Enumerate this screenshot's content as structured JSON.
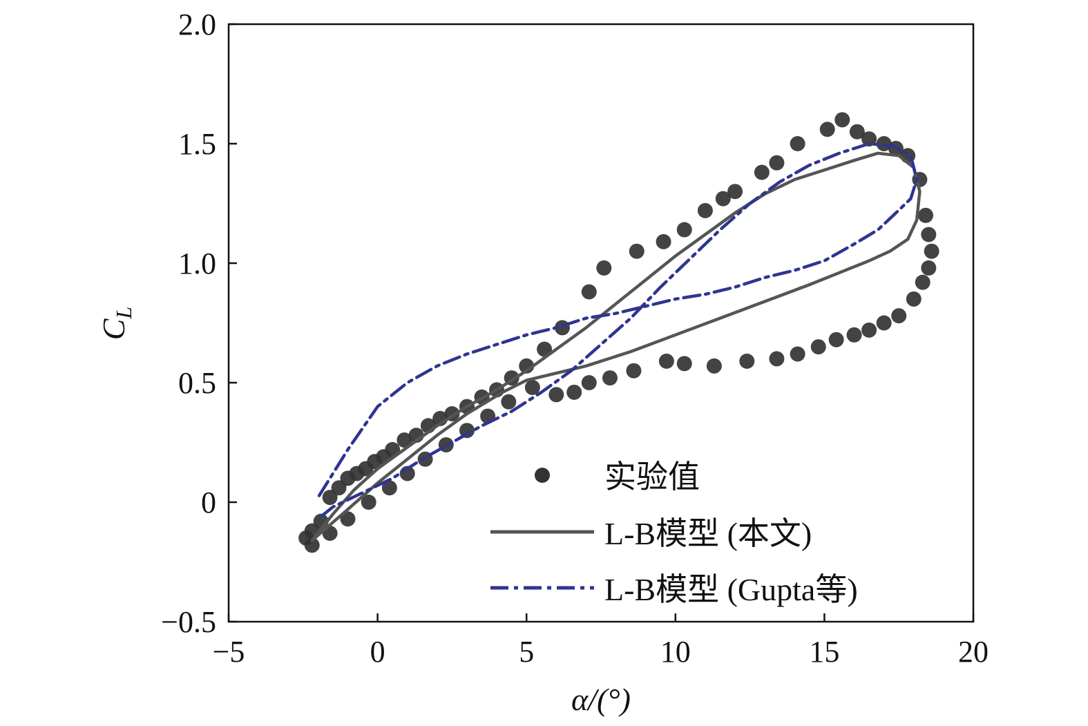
{
  "chart_data": {
    "type": "line",
    "title": "",
    "xlabel": "α/(°)",
    "ylabel": "C_L",
    "ylabel_main": "C",
    "ylabel_sub": "L",
    "xlim": [
      -5,
      20
    ],
    "ylim": [
      -0.5,
      2.0
    ],
    "xticks": [
      -5,
      0,
      5,
      10,
      15,
      20
    ],
    "xtick_labels": [
      "−5",
      "0",
      "5",
      "10",
      "15",
      "20"
    ],
    "yticks": [
      -0.5,
      0,
      0.5,
      1.0,
      1.5,
      2.0
    ],
    "ytick_labels": [
      "−0.5",
      "0",
      "0.5",
      "1.0",
      "1.5",
      "2.0"
    ],
    "grid": false,
    "legend_position": "bottom-right",
    "series": [
      {
        "name": "实验值",
        "kind": "scatter",
        "color": "#333333",
        "x": [
          -2.4,
          -2.2,
          -1.9,
          -1.6,
          -1.3,
          -1.0,
          -0.7,
          -0.4,
          -0.1,
          0.2,
          0.5,
          0.9,
          1.3,
          1.7,
          2.1,
          2.5,
          3.0,
          3.5,
          4.0,
          4.5,
          5.0,
          5.6,
          6.2,
          7.1,
          7.6,
          8.7,
          9.6,
          10.3,
          11.0,
          11.6,
          12.0,
          12.9,
          13.4,
          14.1,
          15.1,
          15.6,
          16.1,
          16.5,
          17.0,
          17.4,
          17.8,
          18.2,
          18.4,
          18.5,
          18.6,
          18.5,
          18.3,
          18.0,
          17.5,
          17.0,
          16.5,
          16.0,
          15.4,
          14.8,
          14.1,
          13.4,
          12.4,
          11.3,
          10.3,
          9.7,
          8.6,
          7.8,
          7.1,
          6.6,
          6.0,
          5.2,
          4.4,
          3.7,
          3.0,
          2.3,
          1.6,
          1.0,
          0.4,
          -0.3,
          -1.0,
          -1.6,
          -2.2
        ],
        "values": [
          -0.15,
          -0.12,
          -0.08,
          0.02,
          0.06,
          0.1,
          0.12,
          0.14,
          0.17,
          0.19,
          0.22,
          0.26,
          0.28,
          0.32,
          0.35,
          0.37,
          0.4,
          0.44,
          0.47,
          0.52,
          0.57,
          0.64,
          0.73,
          0.88,
          0.98,
          1.05,
          1.09,
          1.14,
          1.22,
          1.27,
          1.3,
          1.38,
          1.42,
          1.5,
          1.56,
          1.6,
          1.55,
          1.52,
          1.5,
          1.48,
          1.45,
          1.35,
          1.2,
          1.12,
          1.05,
          0.98,
          0.92,
          0.85,
          0.78,
          0.75,
          0.72,
          0.7,
          0.68,
          0.65,
          0.62,
          0.6,
          0.59,
          0.57,
          0.58,
          0.59,
          0.55,
          0.52,
          0.5,
          0.46,
          0.45,
          0.48,
          0.42,
          0.36,
          0.3,
          0.24,
          0.18,
          0.12,
          0.06,
          0.0,
          -0.07,
          -0.13,
          -0.18
        ]
      },
      {
        "name": "L-B模型 (本文)",
        "kind": "line",
        "color": "#555555",
        "dash": "solid",
        "x": [
          -2.2,
          -1.5,
          -0.8,
          0.0,
          1.0,
          2.0,
          3.0,
          4.0,
          5.0,
          6.0,
          7.0,
          8.0,
          9.0,
          10.0,
          11.0,
          12.0,
          13.0,
          14.0,
          15.0,
          16.0,
          16.8,
          17.5,
          18.0,
          18.2,
          18.1,
          17.8,
          17.2,
          16.5,
          15.5,
          14.5,
          13.0,
          11.5,
          10.0,
          8.5,
          7.0,
          6.0,
          5.0,
          4.2,
          3.0,
          2.0,
          1.0,
          0.0,
          -1.0,
          -2.2
        ],
        "values": [
          -0.16,
          -0.05,
          0.05,
          0.14,
          0.23,
          0.32,
          0.4,
          0.47,
          0.55,
          0.64,
          0.73,
          0.83,
          0.93,
          1.03,
          1.12,
          1.21,
          1.29,
          1.35,
          1.39,
          1.43,
          1.46,
          1.45,
          1.4,
          1.3,
          1.18,
          1.1,
          1.05,
          1.01,
          0.96,
          0.91,
          0.84,
          0.77,
          0.7,
          0.63,
          0.57,
          0.54,
          0.51,
          0.46,
          0.37,
          0.28,
          0.18,
          0.08,
          -0.03,
          -0.16
        ]
      },
      {
        "name": "L-B模型 (Gupta等)",
        "kind": "line",
        "color": "#2e3590",
        "dash": "dashdot",
        "x": [
          -1.9,
          -1.5,
          -0.5,
          0.5,
          1.5,
          2.5,
          3.5,
          4.5,
          5.5,
          6.5,
          7.5,
          8.5,
          9.5,
          10.5,
          11.5,
          12.5,
          13.5,
          14.5,
          15.5,
          16.5,
          17.3,
          17.9,
          18.1,
          17.9,
          17.4,
          16.8,
          16.0,
          15.0,
          14.0,
          13.0,
          12.0,
          11.0,
          10.0,
          9.0,
          8.0,
          7.0,
          6.0,
          5.0,
          4.0,
          3.0,
          2.0,
          1.0,
          0.0,
          -1.0,
          -2.0
        ],
        "values": [
          -0.06,
          -0.02,
          0.04,
          0.1,
          0.18,
          0.25,
          0.32,
          0.38,
          0.46,
          0.55,
          0.66,
          0.77,
          0.9,
          1.02,
          1.14,
          1.25,
          1.34,
          1.41,
          1.46,
          1.5,
          1.49,
          1.45,
          1.35,
          1.27,
          1.21,
          1.14,
          1.08,
          1.01,
          0.97,
          0.94,
          0.9,
          0.87,
          0.85,
          0.82,
          0.79,
          0.77,
          0.73,
          0.7,
          0.66,
          0.62,
          0.57,
          0.5,
          0.4,
          0.22,
          0.02
        ]
      }
    ]
  }
}
